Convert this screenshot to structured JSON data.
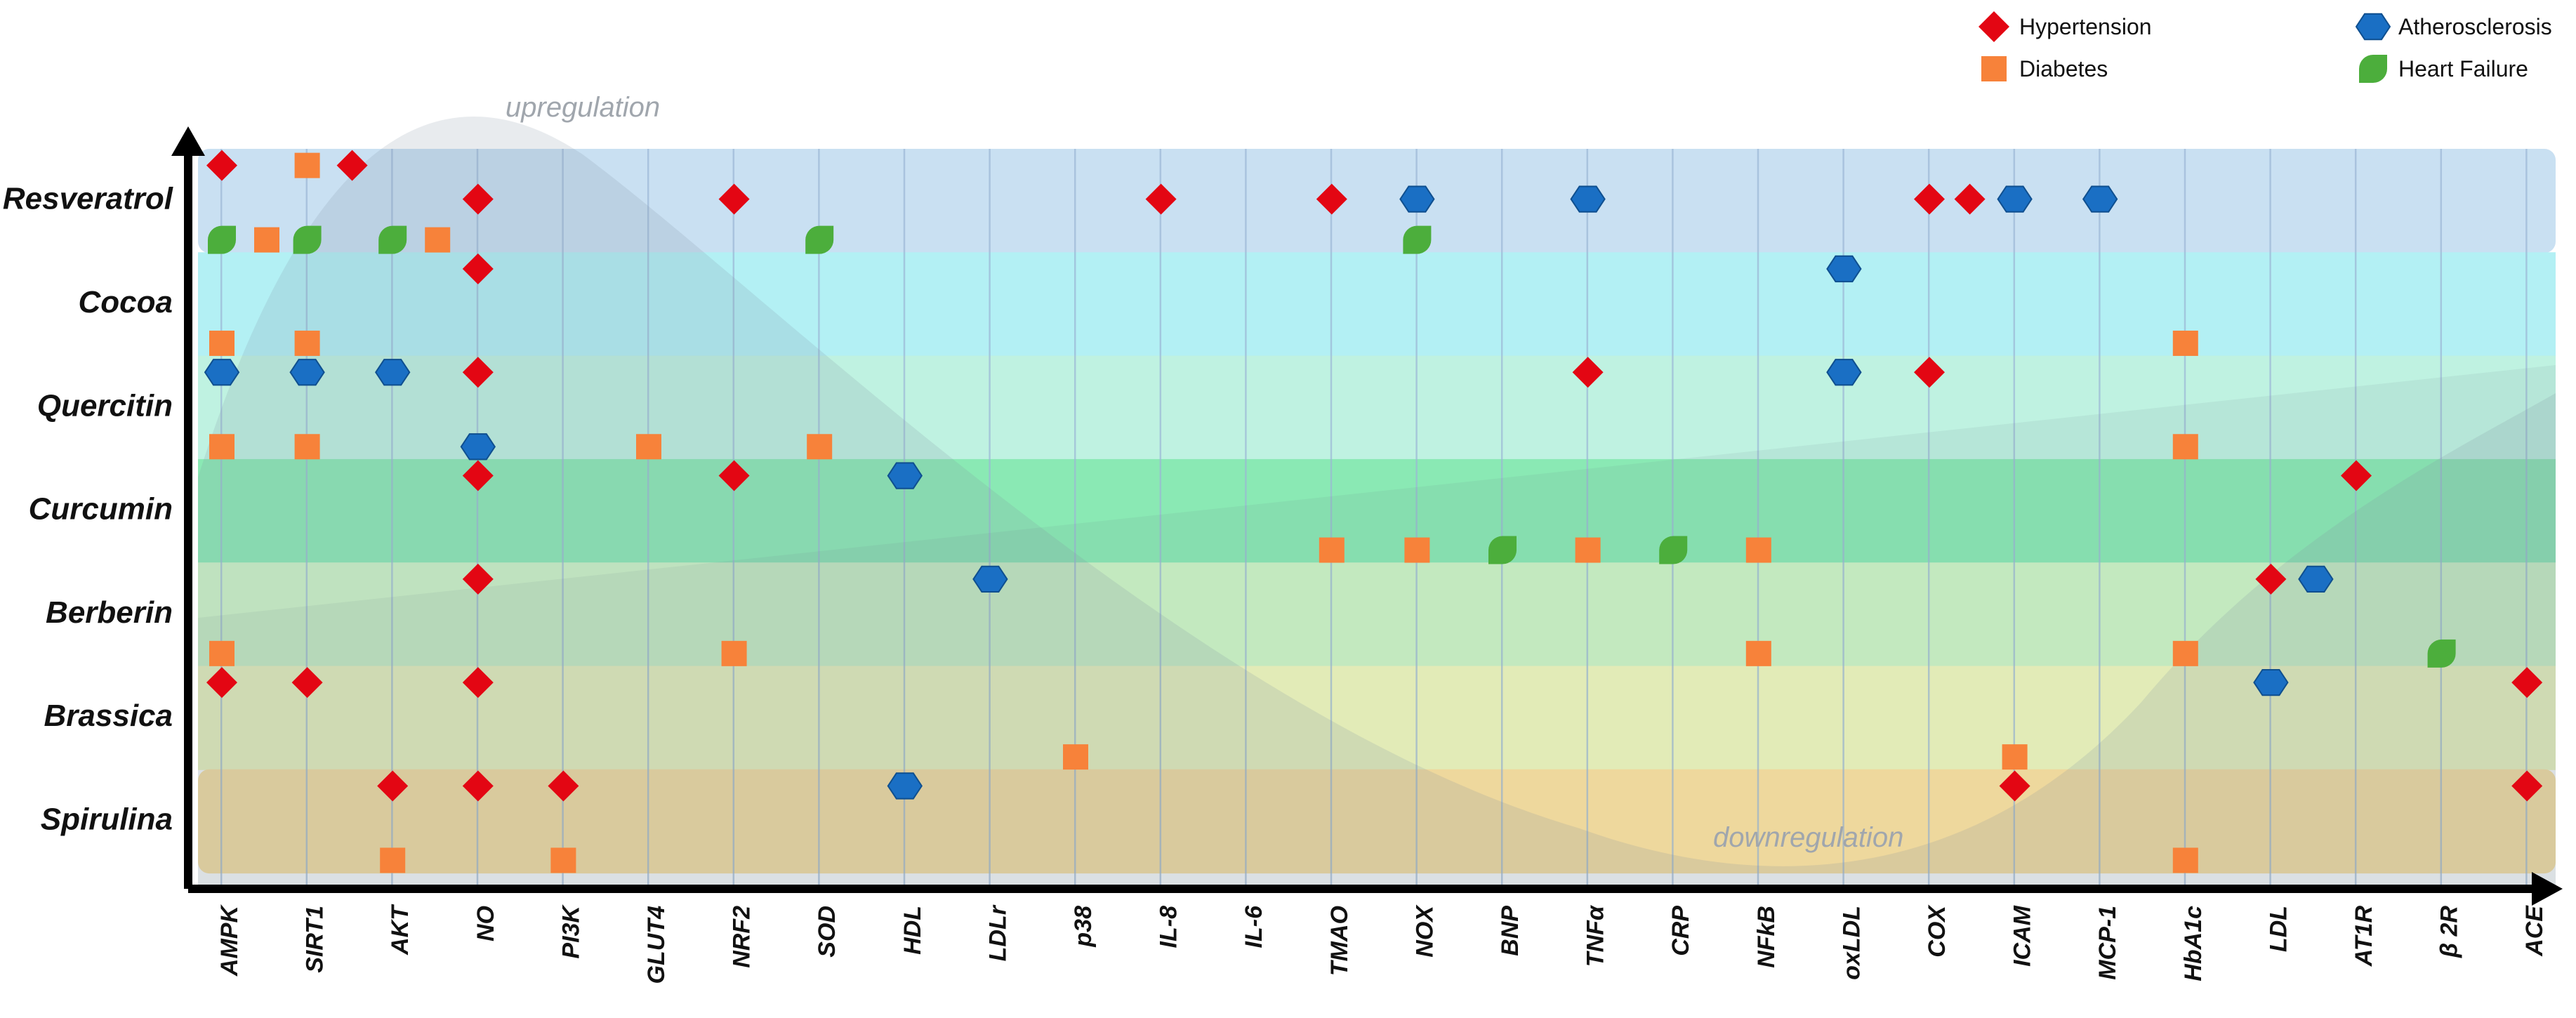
{
  "chart_data": {
    "type": "scatter",
    "title": "",
    "xlabel": "",
    "ylabel": "",
    "annotations": {
      "upregulation": "upregulation",
      "downregulation": "downregulation"
    },
    "categories": [
      "AMPK",
      "SIRT1",
      "AKT",
      "NO",
      "PI3K",
      "GLUT4",
      "NRF2",
      "SOD",
      "HDL",
      "LDLr",
      "p38",
      "IL-8",
      "IL-6",
      "TMAO",
      "NOX",
      "BNP",
      "TNFα",
      "CRP",
      "NFkB",
      "oxLDL",
      "COX",
      "ICAM",
      "MCP-1",
      "HbA1c",
      "LDL",
      "AT1R",
      "β 2R",
      "ACE"
    ],
    "compounds": [
      "Resveratrol",
      "Cocoa",
      "Quercitin",
      "Curcumin",
      "Berberin",
      "Brassica",
      "Spirulina"
    ],
    "band_colors": [
      "#c9e0f2",
      "#b3f0f4",
      "#bff2e1",
      "#8ae9b4",
      "#cdf5c6",
      "#f0f8bd",
      "#fde2a0"
    ],
    "series": [
      {
        "name": "Hypertension",
        "marker": "diamond",
        "color": "#e30613"
      },
      {
        "name": "Atherosclerosis",
        "marker": "hexagon",
        "color": "#1a6fc4"
      },
      {
        "name": "Diabetes",
        "marker": "square",
        "color": "#f7823a"
      },
      {
        "name": "Heart Failure",
        "marker": "leaf",
        "color": "#4cae3c"
      }
    ],
    "points": [
      {
        "compound": "Resveratrol",
        "target": "AMPK",
        "disease": "Hypertension",
        "row": "top",
        "offset": 0
      },
      {
        "compound": "Resveratrol",
        "target": "SIRT1",
        "disease": "Diabetes",
        "row": "top",
        "offset": 0
      },
      {
        "compound": "Resveratrol",
        "target": "SIRT1",
        "disease": "Hypertension",
        "row": "top",
        "offset": 1
      },
      {
        "compound": "Resveratrol",
        "target": "NO",
        "disease": "Hypertension",
        "row": "mid",
        "offset": 0
      },
      {
        "compound": "Resveratrol",
        "target": "NRF2",
        "disease": "Hypertension",
        "row": "mid",
        "offset": 0
      },
      {
        "compound": "Resveratrol",
        "target": "IL-8",
        "disease": "Hypertension",
        "row": "mid",
        "offset": 0
      },
      {
        "compound": "Resveratrol",
        "target": "TMAO",
        "disease": "Hypertension",
        "row": "mid",
        "offset": 0
      },
      {
        "compound": "Resveratrol",
        "target": "NOX",
        "disease": "Atherosclerosis",
        "row": "mid",
        "offset": 0
      },
      {
        "compound": "Resveratrol",
        "target": "TNFα",
        "disease": "Atherosclerosis",
        "row": "mid",
        "offset": 0
      },
      {
        "compound": "Resveratrol",
        "target": "COX",
        "disease": "Hypertension",
        "row": "mid",
        "offset": 0
      },
      {
        "compound": "Resveratrol",
        "target": "ICAM",
        "disease": "Hypertension",
        "row": "mid",
        "offset": -1
      },
      {
        "compound": "Resveratrol",
        "target": "ICAM",
        "disease": "Atherosclerosis",
        "row": "mid",
        "offset": 0
      },
      {
        "compound": "Resveratrol",
        "target": "MCP-1",
        "disease": "Atherosclerosis",
        "row": "mid",
        "offset": 0
      },
      {
        "compound": "Resveratrol",
        "target": "AMPK",
        "disease": "Heart Failure",
        "row": "bot",
        "offset": 0
      },
      {
        "compound": "Resveratrol",
        "target": "AMPK",
        "disease": "Diabetes",
        "row": "bot",
        "offset": 1
      },
      {
        "compound": "Resveratrol",
        "target": "SIRT1",
        "disease": "Heart Failure",
        "row": "bot",
        "offset": 0
      },
      {
        "compound": "Resveratrol",
        "target": "AKT",
        "disease": "Heart Failure",
        "row": "bot",
        "offset": 0
      },
      {
        "compound": "Resveratrol",
        "target": "AKT",
        "disease": "Diabetes",
        "row": "bot",
        "offset": 1
      },
      {
        "compound": "Resveratrol",
        "target": "SOD",
        "disease": "Heart Failure",
        "row": "bot",
        "offset": 0
      },
      {
        "compound": "Resveratrol",
        "target": "NOX",
        "disease": "Heart Failure",
        "row": "bot",
        "offset": 0
      },
      {
        "compound": "Cocoa",
        "target": "NO",
        "disease": "Hypertension",
        "row": "top",
        "offset": 0
      },
      {
        "compound": "Cocoa",
        "target": "oxLDL",
        "disease": "Atherosclerosis",
        "row": "top",
        "offset": 0
      },
      {
        "compound": "Cocoa",
        "target": "AMPK",
        "disease": "Diabetes",
        "row": "bot",
        "offset": 0
      },
      {
        "compound": "Cocoa",
        "target": "SIRT1",
        "disease": "Diabetes",
        "row": "bot",
        "offset": 0
      },
      {
        "compound": "Cocoa",
        "target": "HbA1c",
        "disease": "Diabetes",
        "row": "bot",
        "offset": 0
      },
      {
        "compound": "Quercitin",
        "target": "AMPK",
        "disease": "Atherosclerosis",
        "row": "top",
        "offset": 0
      },
      {
        "compound": "Quercitin",
        "target": "SIRT1",
        "disease": "Atherosclerosis",
        "row": "top",
        "offset": 0
      },
      {
        "compound": "Quercitin",
        "target": "AKT",
        "disease": "Atherosclerosis",
        "row": "top",
        "offset": 0
      },
      {
        "compound": "Quercitin",
        "target": "NO",
        "disease": "Hypertension",
        "row": "top",
        "offset": 0
      },
      {
        "compound": "Quercitin",
        "target": "TNFα",
        "disease": "Hypertension",
        "row": "top",
        "offset": 0
      },
      {
        "compound": "Quercitin",
        "target": "oxLDL",
        "disease": "Atherosclerosis",
        "row": "top",
        "offset": 0
      },
      {
        "compound": "Quercitin",
        "target": "COX",
        "disease": "Hypertension",
        "row": "top",
        "offset": 0
      },
      {
        "compound": "Quercitin",
        "target": "AMPK",
        "disease": "Diabetes",
        "row": "bot",
        "offset": 0
      },
      {
        "compound": "Quercitin",
        "target": "SIRT1",
        "disease": "Diabetes",
        "row": "bot",
        "offset": 0
      },
      {
        "compound": "Quercitin",
        "target": "NO",
        "disease": "Atherosclerosis",
        "row": "bot",
        "offset": 0
      },
      {
        "compound": "Quercitin",
        "target": "GLUT4",
        "disease": "Diabetes",
        "row": "bot",
        "offset": 0
      },
      {
        "compound": "Quercitin",
        "target": "SOD",
        "disease": "Diabetes",
        "row": "bot",
        "offset": 0
      },
      {
        "compound": "Quercitin",
        "target": "HbA1c",
        "disease": "Diabetes",
        "row": "bot",
        "offset": 0
      },
      {
        "compound": "Curcumin",
        "target": "NO",
        "disease": "Hypertension",
        "row": "top",
        "offset": 0
      },
      {
        "compound": "Curcumin",
        "target": "NRF2",
        "disease": "Hypertension",
        "row": "top",
        "offset": 0
      },
      {
        "compound": "Curcumin",
        "target": "HDL",
        "disease": "Atherosclerosis",
        "row": "top",
        "offset": 0
      },
      {
        "compound": "Curcumin",
        "target": "AT1R",
        "disease": "Hypertension",
        "row": "top",
        "offset": 0
      },
      {
        "compound": "Curcumin",
        "target": "TMAO",
        "disease": "Diabetes",
        "row": "bot",
        "offset": 0
      },
      {
        "compound": "Curcumin",
        "target": "NOX",
        "disease": "Diabetes",
        "row": "bot",
        "offset": 0
      },
      {
        "compound": "Curcumin",
        "target": "BNP",
        "disease": "Heart Failure",
        "row": "bot",
        "offset": 0
      },
      {
        "compound": "Curcumin",
        "target": "TNFα",
        "disease": "Diabetes",
        "row": "bot",
        "offset": 0
      },
      {
        "compound": "Curcumin",
        "target": "CRP",
        "disease": "Heart Failure",
        "row": "bot",
        "offset": 0
      },
      {
        "compound": "Curcumin",
        "target": "NFkB",
        "disease": "Diabetes",
        "row": "bot",
        "offset": 0
      },
      {
        "compound": "Berberin",
        "target": "NO",
        "disease": "Hypertension",
        "row": "top",
        "offset": 0
      },
      {
        "compound": "Berberin",
        "target": "LDLr",
        "disease": "Atherosclerosis",
        "row": "top",
        "offset": 0
      },
      {
        "compound": "Berberin",
        "target": "LDL",
        "disease": "Hypertension",
        "row": "top",
        "offset": 0
      },
      {
        "compound": "Berberin",
        "target": "LDL",
        "disease": "Atherosclerosis",
        "row": "top",
        "offset": 1
      },
      {
        "compound": "Berberin",
        "target": "AMPK",
        "disease": "Diabetes",
        "row": "bot",
        "offset": 0
      },
      {
        "compound": "Berberin",
        "target": "NRF2",
        "disease": "Diabetes",
        "row": "bot",
        "offset": 0
      },
      {
        "compound": "Berberin",
        "target": "NFkB",
        "disease": "Diabetes",
        "row": "bot",
        "offset": 0
      },
      {
        "compound": "Berberin",
        "target": "HbA1c",
        "disease": "Diabetes",
        "row": "bot",
        "offset": 0
      },
      {
        "compound": "Berberin",
        "target": "β 2R",
        "disease": "Heart Failure",
        "row": "bot",
        "offset": 0
      },
      {
        "compound": "Brassica",
        "target": "AMPK",
        "disease": "Hypertension",
        "row": "top",
        "offset": 0
      },
      {
        "compound": "Brassica",
        "target": "SIRT1",
        "disease": "Hypertension",
        "row": "top",
        "offset": 0
      },
      {
        "compound": "Brassica",
        "target": "NO",
        "disease": "Hypertension",
        "row": "top",
        "offset": 0
      },
      {
        "compound": "Brassica",
        "target": "LDL",
        "disease": "Atherosclerosis",
        "row": "top",
        "offset": 0
      },
      {
        "compound": "Brassica",
        "target": "ACE",
        "disease": "Hypertension",
        "row": "top",
        "offset": 0
      },
      {
        "compound": "Brassica",
        "target": "p38",
        "disease": "Diabetes",
        "row": "bot",
        "offset": 0
      },
      {
        "compound": "Brassica",
        "target": "ICAM",
        "disease": "Diabetes",
        "row": "bot",
        "offset": 0
      },
      {
        "compound": "Spirulina",
        "target": "AKT",
        "disease": "Hypertension",
        "row": "top",
        "offset": 0
      },
      {
        "compound": "Spirulina",
        "target": "NO",
        "disease": "Hypertension",
        "row": "top",
        "offset": 0
      },
      {
        "compound": "Spirulina",
        "target": "PI3K",
        "disease": "Hypertension",
        "row": "top",
        "offset": 0
      },
      {
        "compound": "Spirulina",
        "target": "HDL",
        "disease": "Atherosclerosis",
        "row": "top",
        "offset": 0
      },
      {
        "compound": "Spirulina",
        "target": "ICAM",
        "disease": "Hypertension",
        "row": "top",
        "offset": 0
      },
      {
        "compound": "Spirulina",
        "target": "ACE",
        "disease": "Hypertension",
        "row": "top",
        "offset": 0
      },
      {
        "compound": "Spirulina",
        "target": "AKT",
        "disease": "Diabetes",
        "row": "bot",
        "offset": 0
      },
      {
        "compound": "Spirulina",
        "target": "PI3K",
        "disease": "Diabetes",
        "row": "bot",
        "offset": 0
      },
      {
        "compound": "Spirulina",
        "target": "HbA1c",
        "disease": "Diabetes",
        "row": "bot",
        "offset": 0
      }
    ]
  }
}
